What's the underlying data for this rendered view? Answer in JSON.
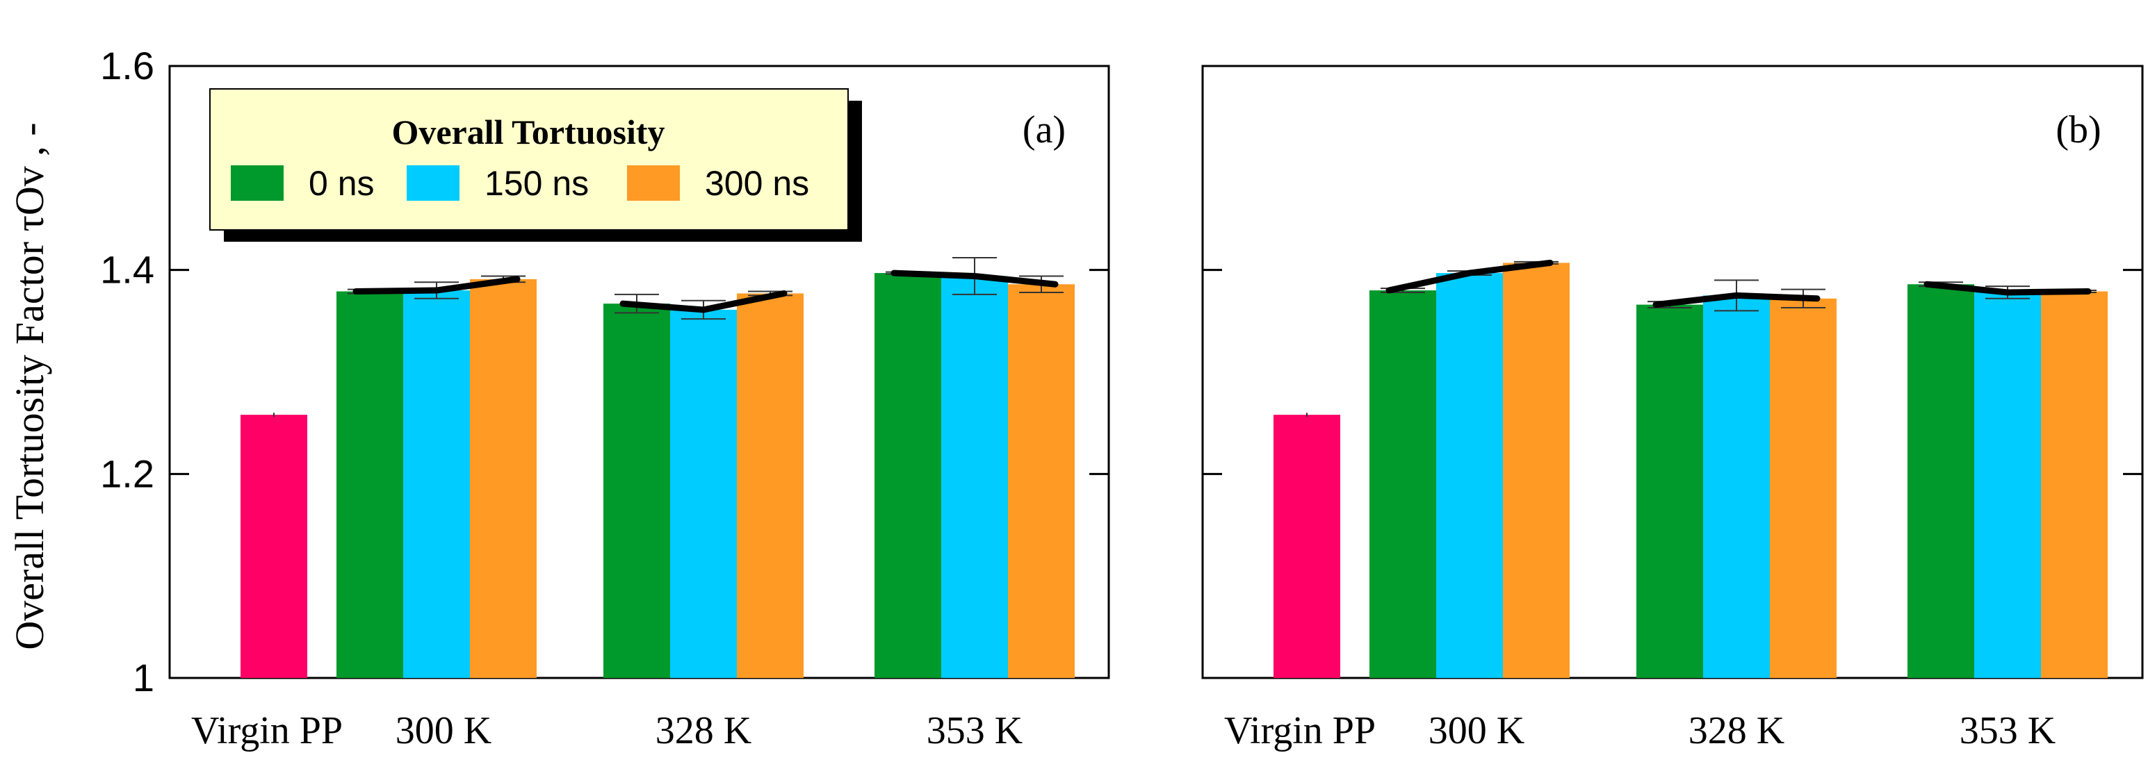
{
  "chart_data": {
    "type": "bar",
    "ylabel": "Overall Tortuosity Factor  τOv , -",
    "ylim": [
      1.0,
      1.6
    ],
    "yticks": [
      "1",
      "1.2",
      "1.4",
      "1.6"
    ],
    "categories": [
      "Virgin PP",
      "300 K",
      "328 K",
      "353 K"
    ],
    "legend": {
      "title": "Overall Tortuosity",
      "placement": "top-left of panel (a)",
      "entries": [
        {
          "label": "0 ns",
          "color": "#00992B"
        },
        {
          "label": "150 ns",
          "color": "#00CCFF"
        },
        {
          "label": "300 ns",
          "color": "#FF9A24"
        }
      ]
    },
    "virgin_color": "#FF0066",
    "panels": [
      {
        "label": "(a)",
        "virgin": {
          "value": 1.258,
          "error": 0.002
        },
        "groups": [
          {
            "category": "300 K",
            "values": [
              1.379,
              1.38,
              1.391
            ],
            "errors": [
              0.002,
              0.008,
              0.003
            ]
          },
          {
            "category": "328 K",
            "values": [
              1.367,
              1.361,
              1.377
            ],
            "errors": [
              0.009,
              0.009,
              0.002
            ]
          },
          {
            "category": "353 K",
            "values": [
              1.397,
              1.394,
              1.386
            ],
            "errors": [
              0.001,
              0.018,
              0.008
            ]
          }
        ]
      },
      {
        "label": "(b)",
        "virgin": {
          "value": 1.258,
          "error": 0.002
        },
        "groups": [
          {
            "category": "300 K",
            "values": [
              1.38,
              1.397,
              1.407
            ],
            "errors": [
              0.002,
              0.002,
              0.001
            ]
          },
          {
            "category": "328 K",
            "values": [
              1.366,
              1.375,
              1.372
            ],
            "errors": [
              0.003,
              0.015,
              0.009
            ]
          },
          {
            "category": "353 K",
            "values": [
              1.386,
              1.378,
              1.379
            ],
            "errors": [
              0.002,
              0.006,
              0.001
            ]
          }
        ]
      }
    ]
  }
}
